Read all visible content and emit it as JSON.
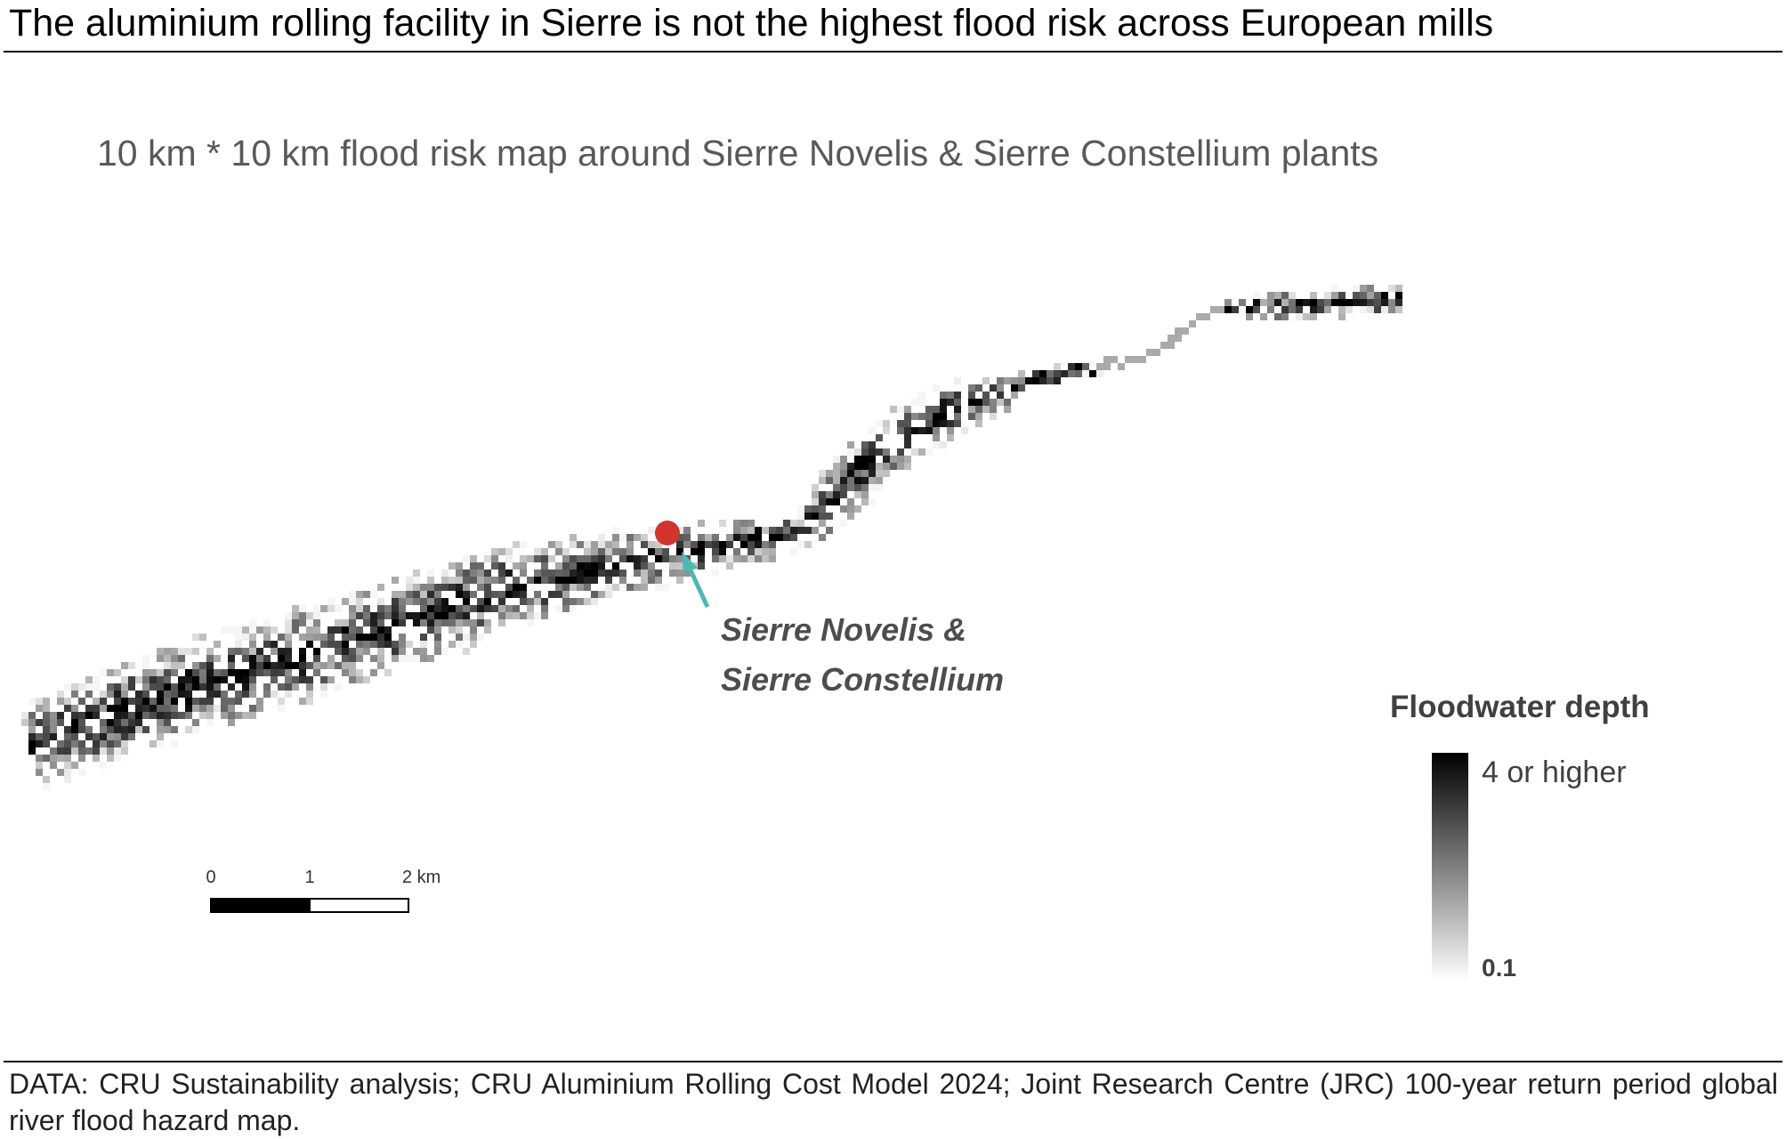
{
  "header": {
    "title": "The aluminium rolling facility in Sierre is not the highest flood risk across European mills"
  },
  "map": {
    "subtitle": "10 km * 10 km flood risk map around Sierre Novelis & Sierre Constellium plants",
    "annotation": {
      "line1": "Sierre Novelis &",
      "line2": "Sierre Constellium"
    },
    "legend": {
      "title": "Floodwater depth",
      "high": "4 or higher",
      "low": "0.1"
    },
    "scale_bar": {
      "labels": [
        "0",
        "1",
        "2 km"
      ]
    }
  },
  "footer": {
    "source": "DATA: CRU Sustainability analysis; CRU Aluminium Rolling Cost Model 2024; Joint Research Centre (JRC) 100-year return period global river flood hazard map."
  }
}
